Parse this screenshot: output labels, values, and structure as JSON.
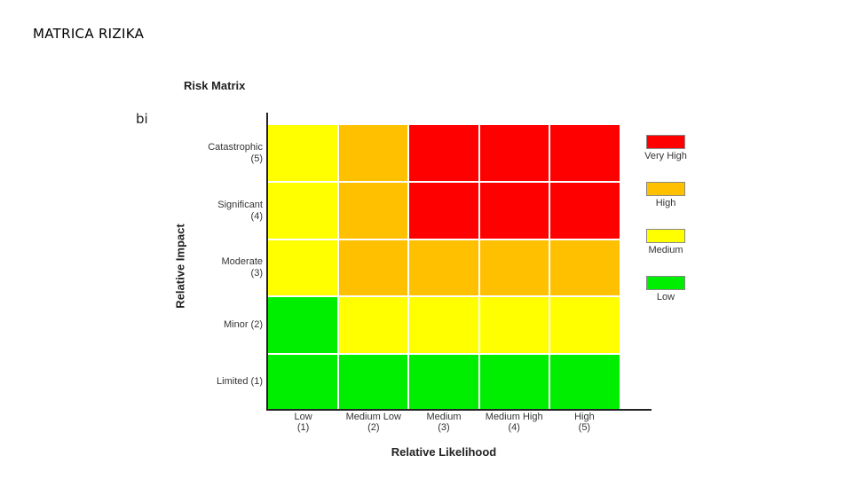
{
  "slide": {
    "title": "MATRICA RIZIKA",
    "stray_text": "bi"
  },
  "matrix": {
    "title": "Risk Matrix",
    "ylabel": "Relative Impact",
    "xlabel": "Relative Likelihood",
    "rows": [
      {
        "line1": "Catastrophic",
        "line2": "(5)",
        "levels": [
          "medium",
          "high",
          "very_high",
          "very_high",
          "very_high"
        ]
      },
      {
        "line1": "Significant",
        "line2": "(4)",
        "levels": [
          "medium",
          "high",
          "very_high",
          "very_high",
          "very_high"
        ]
      },
      {
        "line1": "Moderate",
        "line2": "(3)",
        "levels": [
          "medium",
          "high",
          "high",
          "high",
          "high"
        ]
      },
      {
        "line1": "Minor (2)",
        "line2": "",
        "levels": [
          "low",
          "medium",
          "medium",
          "medium",
          "medium"
        ]
      },
      {
        "line1": "Limited (1)",
        "line2": "",
        "levels": [
          "low",
          "low",
          "low",
          "low",
          "low"
        ]
      }
    ],
    "columns": [
      {
        "line1": "Low",
        "line2": "(1)"
      },
      {
        "line1": "Medium Low",
        "line2": "(2)"
      },
      {
        "line1": "Medium",
        "line2": "(3)"
      },
      {
        "line1": "Medium High",
        "line2": "(4)"
      },
      {
        "line1": "High",
        "line2": "(5)"
      }
    ],
    "legend": [
      {
        "key": "very_high",
        "label": "Very High"
      },
      {
        "key": "high",
        "label": "High"
      },
      {
        "key": "medium",
        "label": "Medium"
      },
      {
        "key": "low",
        "label": "Low"
      }
    ],
    "colors": {
      "very_high": "#ff0000",
      "high": "#ffc000",
      "medium": "#ffff00",
      "low": "#00ee00"
    }
  }
}
